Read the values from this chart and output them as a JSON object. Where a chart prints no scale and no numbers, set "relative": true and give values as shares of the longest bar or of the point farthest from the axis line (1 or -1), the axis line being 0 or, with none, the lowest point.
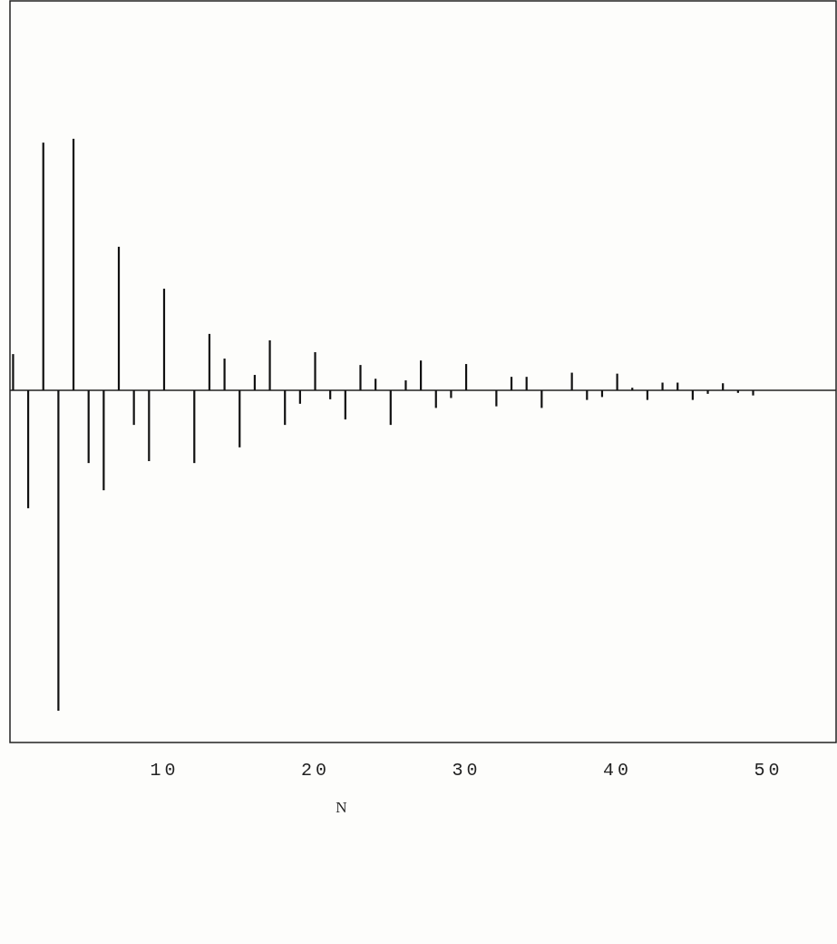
{
  "chart_data": {
    "type": "bar",
    "relative": true,
    "xlabel": "N",
    "xlim": [
      -0.2,
      54.5
    ],
    "xticks": [
      10,
      20,
      30,
      40,
      50
    ],
    "tick_labels": "x",
    "color": "#111111",
    "x": [
      0,
      1,
      2,
      3,
      4,
      5,
      6,
      7,
      8,
      9,
      10,
      11,
      12,
      13,
      14,
      15,
      16,
      17,
      18,
      19,
      20,
      21,
      22,
      23,
      24,
      25,
      26,
      27,
      28,
      29,
      30,
      31,
      32,
      33,
      34,
      35,
      36,
      37,
      38,
      39,
      40,
      41,
      42,
      43,
      44,
      45,
      46,
      47,
      48,
      49
    ],
    "values": [
      0.113,
      -0.368,
      0.773,
      -1,
      0.785,
      -0.227,
      -0.312,
      0.448,
      -0.108,
      -0.221,
      0.317,
      0,
      -0.227,
      0.176,
      0.099,
      -0.178,
      0.048,
      0.156,
      -0.108,
      -0.042,
      0.119,
      -0.028,
      -0.091,
      0.079,
      0.036,
      -0.108,
      0.031,
      0.093,
      -0.055,
      -0.024,
      0.082,
      0,
      -0.05,
      0.042,
      0.042,
      -0.055,
      0,
      0.055,
      -0.03,
      -0.021,
      0.052,
      0.008,
      -0.03,
      0.024,
      0.024,
      -0.03,
      -0.011,
      0.022,
      -0.008,
      -0.016
    ]
  }
}
